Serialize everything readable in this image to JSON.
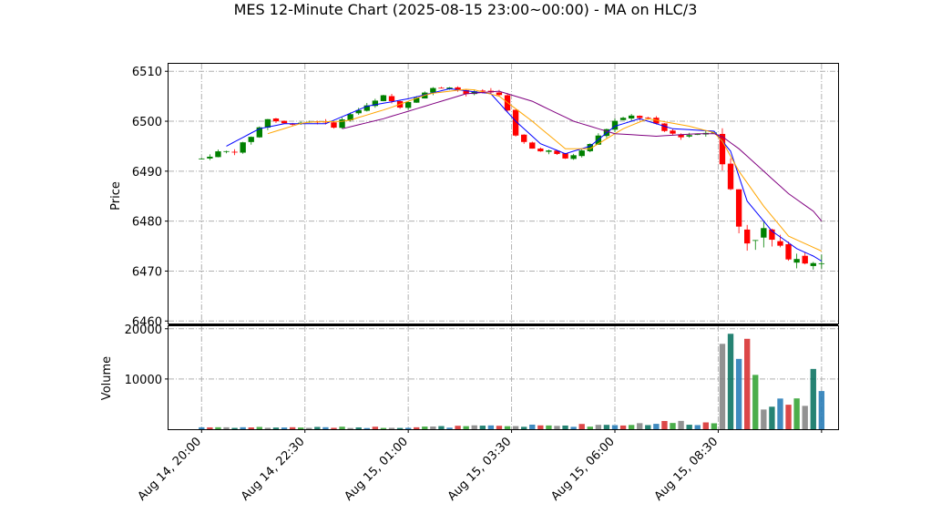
{
  "chart_data": {
    "type": "candlestick",
    "title": "MES 12-Minute Chart (2025-08-15 23:00~00:00) - MA on HLC/3",
    "price_panel": {
      "ylabel": "Price",
      "ylim": [
        6459.5,
        6511.5
      ],
      "yticks": [
        6460,
        6470,
        6480,
        6490,
        6500,
        6510
      ],
      "grid": true
    },
    "volume_panel": {
      "ylabel": "Volume",
      "ylim": [
        0,
        20500
      ],
      "yticks": [
        10000,
        20000
      ],
      "grid": true
    },
    "x_axis": {
      "xlim": [
        "2025-08-14 19:12",
        "2025-08-15 11:24"
      ],
      "ticks": [
        {
          "time": "2025-08-14 20:00",
          "label": "Aug 14, 20:00"
        },
        {
          "time": "2025-08-14 22:30",
          "label": "Aug 14, 22:30"
        },
        {
          "time": "2025-08-15 01:00",
          "label": "Aug 15, 01:00"
        },
        {
          "time": "2025-08-15 03:30",
          "label": "Aug 15, 03:30"
        },
        {
          "time": "2025-08-15 06:00",
          "label": "Aug 15, 06:00"
        },
        {
          "time": "2025-08-15 08:30",
          "label": "Aug 15, 08:30"
        },
        {
          "time": "2025-08-15 11:00",
          "label": ""
        }
      ]
    },
    "bar_interval_minutes": 12,
    "first_bar_time": "2025-08-14 20:00",
    "colors": {
      "up": "#008000",
      "down": "#ff0000",
      "fast_ma": "#0000ff",
      "mid_ma": "#ffa500",
      "slow_ma": "#800080"
    },
    "close_anchors": [
      [
        "2025-08-14 20:00",
        6492.5
      ],
      [
        "2025-08-14 20:24",
        6493.8
      ],
      [
        "2025-08-14 20:48",
        6494.0
      ],
      [
        "2025-08-14 21:12",
        6497.0
      ],
      [
        "2025-08-14 21:36",
        6500.5
      ],
      [
        "2025-08-14 22:00",
        6499.5
      ],
      [
        "2025-08-14 22:24",
        6499.8
      ],
      [
        "2025-08-14 22:48",
        6500.0
      ],
      [
        "2025-08-14 23:12",
        6499.0
      ],
      [
        "2025-08-14 23:36",
        6501.5
      ],
      [
        "2025-08-15 00:00",
        6503.0
      ],
      [
        "2025-08-15 00:24",
        6505.0
      ],
      [
        "2025-08-15 00:48",
        6503.0
      ],
      [
        "2025-08-15 01:12",
        6505.0
      ],
      [
        "2025-08-15 01:36",
        6506.5
      ],
      [
        "2025-08-15 02:00",
        6507.0
      ],
      [
        "2025-08-15 02:24",
        6505.5
      ],
      [
        "2025-08-15 02:48",
        6506.0
      ],
      [
        "2025-08-15 03:12",
        6505.5
      ],
      [
        "2025-08-15 03:24",
        6502.0
      ],
      [
        "2025-08-15 03:36",
        6497.0
      ],
      [
        "2025-08-15 04:00",
        6494.5
      ],
      [
        "2025-08-15 04:24",
        6494.0
      ],
      [
        "2025-08-15 04:48",
        6492.5
      ],
      [
        "2025-08-15 05:12",
        6494.0
      ],
      [
        "2025-08-15 05:36",
        6497.0
      ],
      [
        "2025-08-15 06:00",
        6500.0
      ],
      [
        "2025-08-15 06:24",
        6501.0
      ],
      [
        "2025-08-15 06:48",
        6500.5
      ],
      [
        "2025-08-15 07:12",
        6498.0
      ],
      [
        "2025-08-15 07:36",
        6497.0
      ],
      [
        "2025-08-15 08:00",
        6497.5
      ],
      [
        "2025-08-15 08:24",
        6498.0
      ],
      [
        "2025-08-15 08:36",
        6492.0
      ],
      [
        "2025-08-15 08:48",
        6486.0
      ],
      [
        "2025-08-15 09:00",
        6479.0
      ],
      [
        "2025-08-15 09:12",
        6476.0
      ],
      [
        "2025-08-15 09:36",
        6478.0
      ],
      [
        "2025-08-15 10:00",
        6474.0
      ],
      [
        "2025-08-15 10:24",
        6473.0
      ],
      [
        "2025-08-15 10:48",
        6472.0
      ],
      [
        "2025-08-15 10:54",
        6468.0
      ],
      [
        "2025-08-15 11:00",
        6472.0
      ]
    ],
    "volume_anchors": [
      [
        "2025-08-14 20:00",
        400
      ],
      [
        "2025-08-14 22:30",
        350
      ],
      [
        "2025-08-15 01:00",
        400
      ],
      [
        "2025-08-15 03:00",
        600
      ],
      [
        "2025-08-15 04:30",
        700
      ],
      [
        "2025-08-15 06:00",
        900
      ],
      [
        "2025-08-15 07:30",
        1400
      ],
      [
        "2025-08-15 08:24",
        1200
      ],
      [
        "2025-08-15 08:36",
        11000
      ],
      [
        "2025-08-15 09:00",
        10500
      ],
      [
        "2025-08-15 09:48",
        5000
      ],
      [
        "2025-08-15 10:24",
        6000
      ],
      [
        "2025-08-15 10:48",
        7000
      ],
      [
        "2025-08-15 11:00",
        7500
      ]
    ],
    "volume_peaks": [
      [
        "2025-08-15 08:36",
        17000
      ],
      [
        "2025-08-15 08:48",
        19000
      ],
      [
        "2025-08-15 09:12",
        18000
      ],
      [
        "2025-08-15 09:00",
        14000
      ],
      [
        "2025-08-15 10:48",
        12000
      ]
    ],
    "moving_averages": [
      {
        "color": "#0000ff",
        "start": "2025-08-14 20:36",
        "points": [
          [
            "2025-08-14 20:36",
            6495.0
          ],
          [
            "2025-08-14 21:24",
            6498.5
          ],
          [
            "2025-08-14 22:00",
            6499.5
          ],
          [
            "2025-08-14 23:00",
            6499.5
          ],
          [
            "2025-08-15 00:00",
            6503.0
          ],
          [
            "2025-08-15 01:00",
            6504.5
          ],
          [
            "2025-08-15 02:00",
            6506.5
          ],
          [
            "2025-08-15 03:00",
            6505.5
          ],
          [
            "2025-08-15 03:36",
            6500.0
          ],
          [
            "2025-08-15 04:12",
            6495.5
          ],
          [
            "2025-08-15 04:48",
            6493.5
          ],
          [
            "2025-08-15 05:24",
            6495.0
          ],
          [
            "2025-08-15 06:00",
            6499.0
          ],
          [
            "2025-08-15 06:36",
            6500.5
          ],
          [
            "2025-08-15 07:24",
            6498.5
          ],
          [
            "2025-08-15 08:24",
            6498.0
          ],
          [
            "2025-08-15 08:48",
            6494.0
          ],
          [
            "2025-08-15 09:12",
            6484.0
          ],
          [
            "2025-08-15 09:48",
            6478.0
          ],
          [
            "2025-08-15 10:24",
            6474.5
          ],
          [
            "2025-08-15 10:48",
            6473.0
          ],
          [
            "2025-08-15 11:00",
            6472.0
          ]
        ]
      },
      {
        "color": "#ffa500",
        "start": "2025-08-14 21:36",
        "points": [
          [
            "2025-08-14 21:36",
            6497.5
          ],
          [
            "2025-08-14 22:30",
            6499.8
          ],
          [
            "2025-08-14 23:30",
            6500.0
          ],
          [
            "2025-08-15 00:30",
            6502.5
          ],
          [
            "2025-08-15 01:30",
            6505.5
          ],
          [
            "2025-08-15 02:30",
            6506.5
          ],
          [
            "2025-08-15 03:12",
            6505.0
          ],
          [
            "2025-08-15 04:00",
            6500.0
          ],
          [
            "2025-08-15 04:48",
            6494.5
          ],
          [
            "2025-08-15 05:24",
            6494.5
          ],
          [
            "2025-08-15 06:12",
            6498.5
          ],
          [
            "2025-08-15 06:48",
            6500.5
          ],
          [
            "2025-08-15 07:48",
            6499.0
          ],
          [
            "2025-08-15 08:30",
            6497.5
          ],
          [
            "2025-08-15 09:00",
            6490.0
          ],
          [
            "2025-08-15 09:36",
            6483.0
          ],
          [
            "2025-08-15 10:12",
            6477.0
          ],
          [
            "2025-08-15 10:36",
            6475.5
          ],
          [
            "2025-08-15 11:00",
            6474.0
          ]
        ]
      },
      {
        "color": "#800080",
        "start": "2025-08-14 23:24",
        "points": [
          [
            "2025-08-14 23:24",
            6498.5
          ],
          [
            "2025-08-15 00:24",
            6500.5
          ],
          [
            "2025-08-15 01:24",
            6503.0
          ],
          [
            "2025-08-15 02:24",
            6505.5
          ],
          [
            "2025-08-15 03:12",
            6506.0
          ],
          [
            "2025-08-15 04:00",
            6504.0
          ],
          [
            "2025-08-15 05:00",
            6500.0
          ],
          [
            "2025-08-15 06:00",
            6497.5
          ],
          [
            "2025-08-15 07:00",
            6497.0
          ],
          [
            "2025-08-15 08:00",
            6497.5
          ],
          [
            "2025-08-15 08:30",
            6497.5
          ],
          [
            "2025-08-15 09:00",
            6494.5
          ],
          [
            "2025-08-15 09:36",
            6490.0
          ],
          [
            "2025-08-15 10:12",
            6485.5
          ],
          [
            "2025-08-15 10:48",
            6482.0
          ],
          [
            "2025-08-15 11:00",
            6480.0
          ]
        ]
      }
    ]
  }
}
